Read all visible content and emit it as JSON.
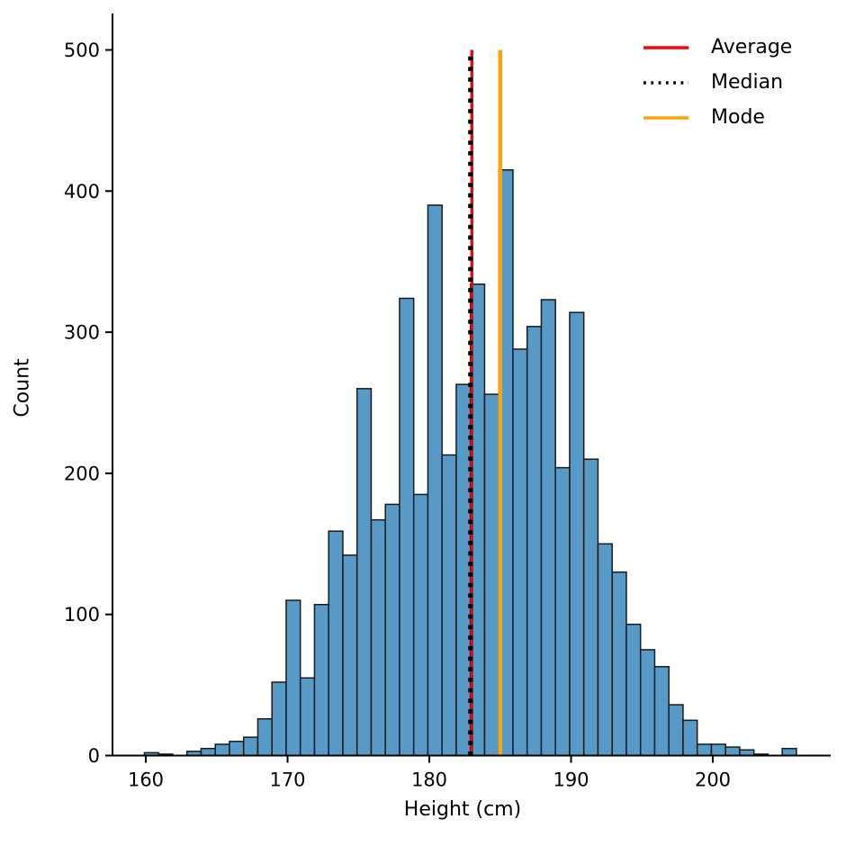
{
  "figure": {
    "background": "#ffffff",
    "text_color": "#000000"
  },
  "legend": {
    "items": [
      {
        "label": "Average",
        "color": "#ff0000",
        "style": "solid"
      },
      {
        "label": "Median",
        "color": "#000000",
        "style": "dotted"
      },
      {
        "label": "Mode",
        "color": "#ffa500",
        "style": "solid"
      }
    ]
  },
  "chart_data": {
    "type": "bar",
    "subtype": "histogram",
    "title": "",
    "xlabel": "Height (cm)",
    "ylabel": "Count",
    "x_ticks": [
      160,
      170,
      180,
      190,
      200
    ],
    "y_ticks": [
      0,
      100,
      200,
      300,
      400,
      500
    ],
    "xlim": [
      157.65,
      208.3
    ],
    "ylim": [
      0,
      526
    ],
    "grid": false,
    "legend_position": "upper right",
    "bar_color": "#5799c7",
    "bar_edge_color": "#1a1a1a",
    "bin_start": 159.9,
    "bin_width": 1,
    "counts": [
      2,
      1,
      0,
      3,
      5,
      8,
      10,
      13,
      26,
      52,
      110,
      55,
      107,
      159,
      142,
      260,
      167,
      178,
      324,
      185,
      390,
      213,
      263,
      334,
      256,
      415,
      288,
      304,
      323,
      204,
      314,
      210,
      150,
      130,
      93,
      75,
      63,
      36,
      25,
      8,
      8,
      6,
      4,
      1,
      0,
      5
    ],
    "stat_lines": [
      {
        "name": "Average",
        "value": 183.0,
        "color": "#ff0000",
        "style": "solid"
      },
      {
        "name": "Median",
        "value": 182.9,
        "color": "#000000",
        "style": "dotted"
      },
      {
        "name": "Mode",
        "value": 185.0,
        "color": "#ffa500",
        "style": "solid"
      }
    ],
    "stat_line_top": 500
  }
}
